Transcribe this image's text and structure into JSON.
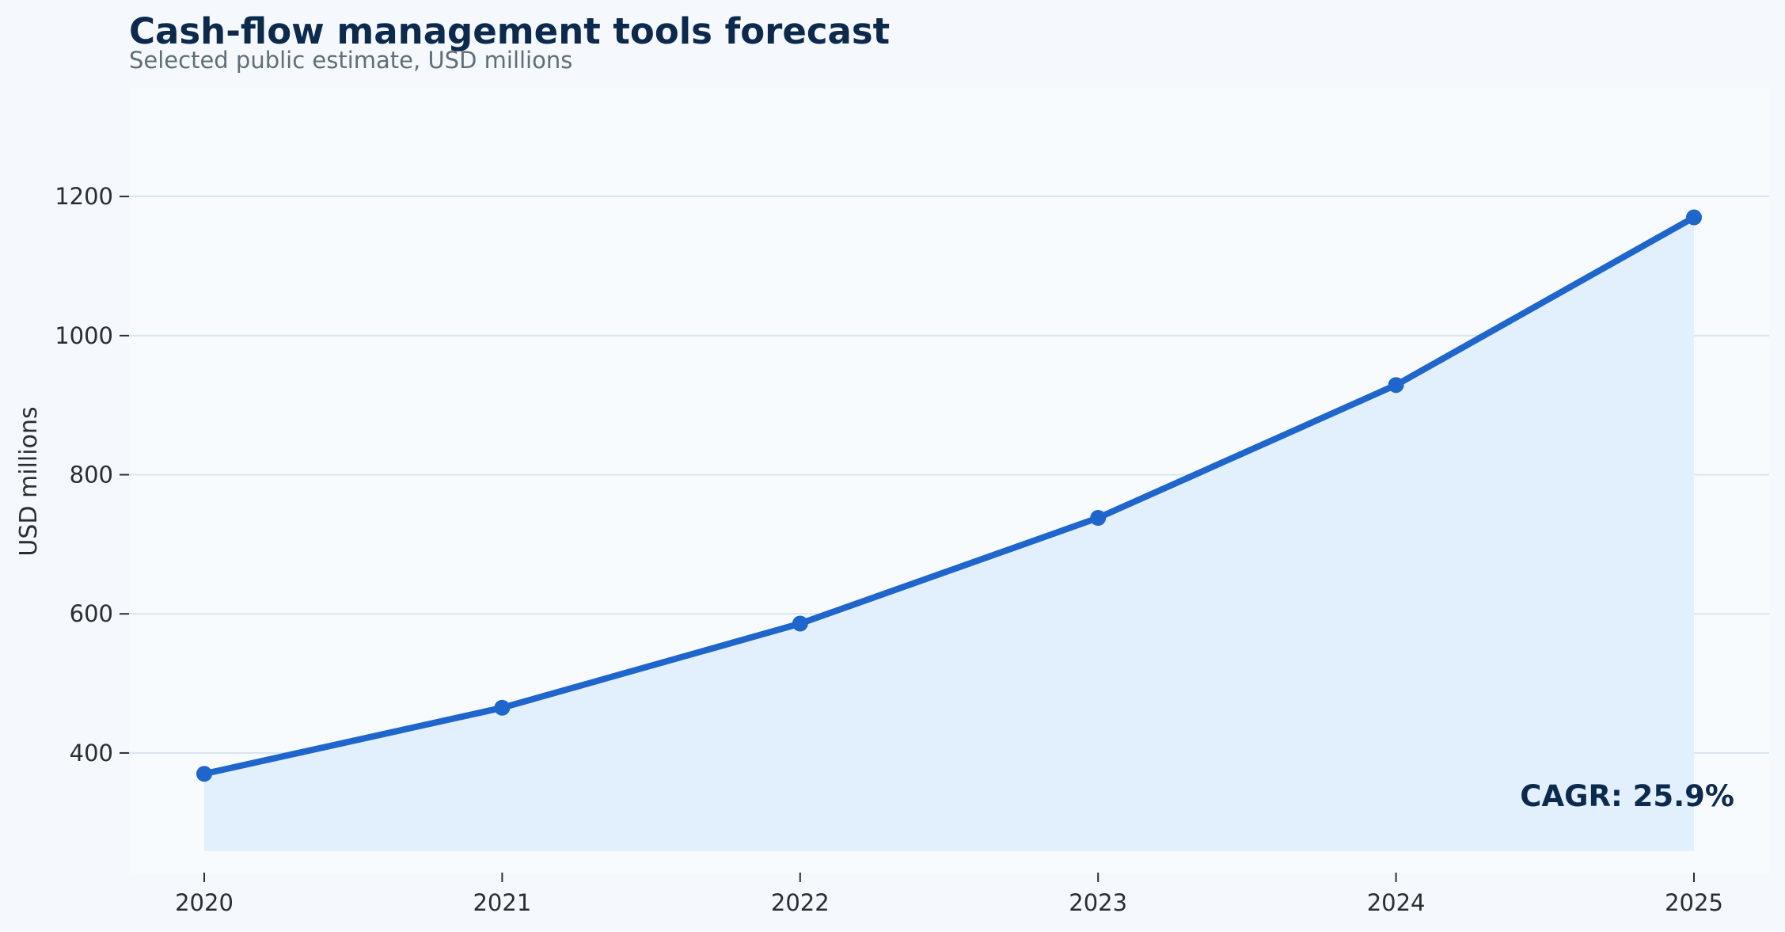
{
  "chart_data": {
    "type": "area",
    "title": "Cash-flow management tools forecast",
    "subtitle": "Selected public estimate, USD millions",
    "xlabel": "",
    "ylabel": "USD millions",
    "x": [
      "2020",
      "2021",
      "2022",
      "2023",
      "2024",
      "2025"
    ],
    "series": [
      {
        "values": [
          370,
          465,
          586,
          738,
          929,
          1170
        ]
      }
    ],
    "y_ticks": [
      "400",
      "600",
      "800",
      "1000",
      "1200"
    ],
    "ylim": [
      228,
      1355
    ],
    "fill_baseline": 259,
    "grid": "horizontal",
    "annotation": "CAGR: 25.9%",
    "colors": {
      "line": "#1f66cc",
      "fill": "#e2effc",
      "plot_background": "#f8fbfe",
      "page_background": "#f5f9fd",
      "grid": "#d6e6ef",
      "title": "#0b2a4e"
    }
  }
}
